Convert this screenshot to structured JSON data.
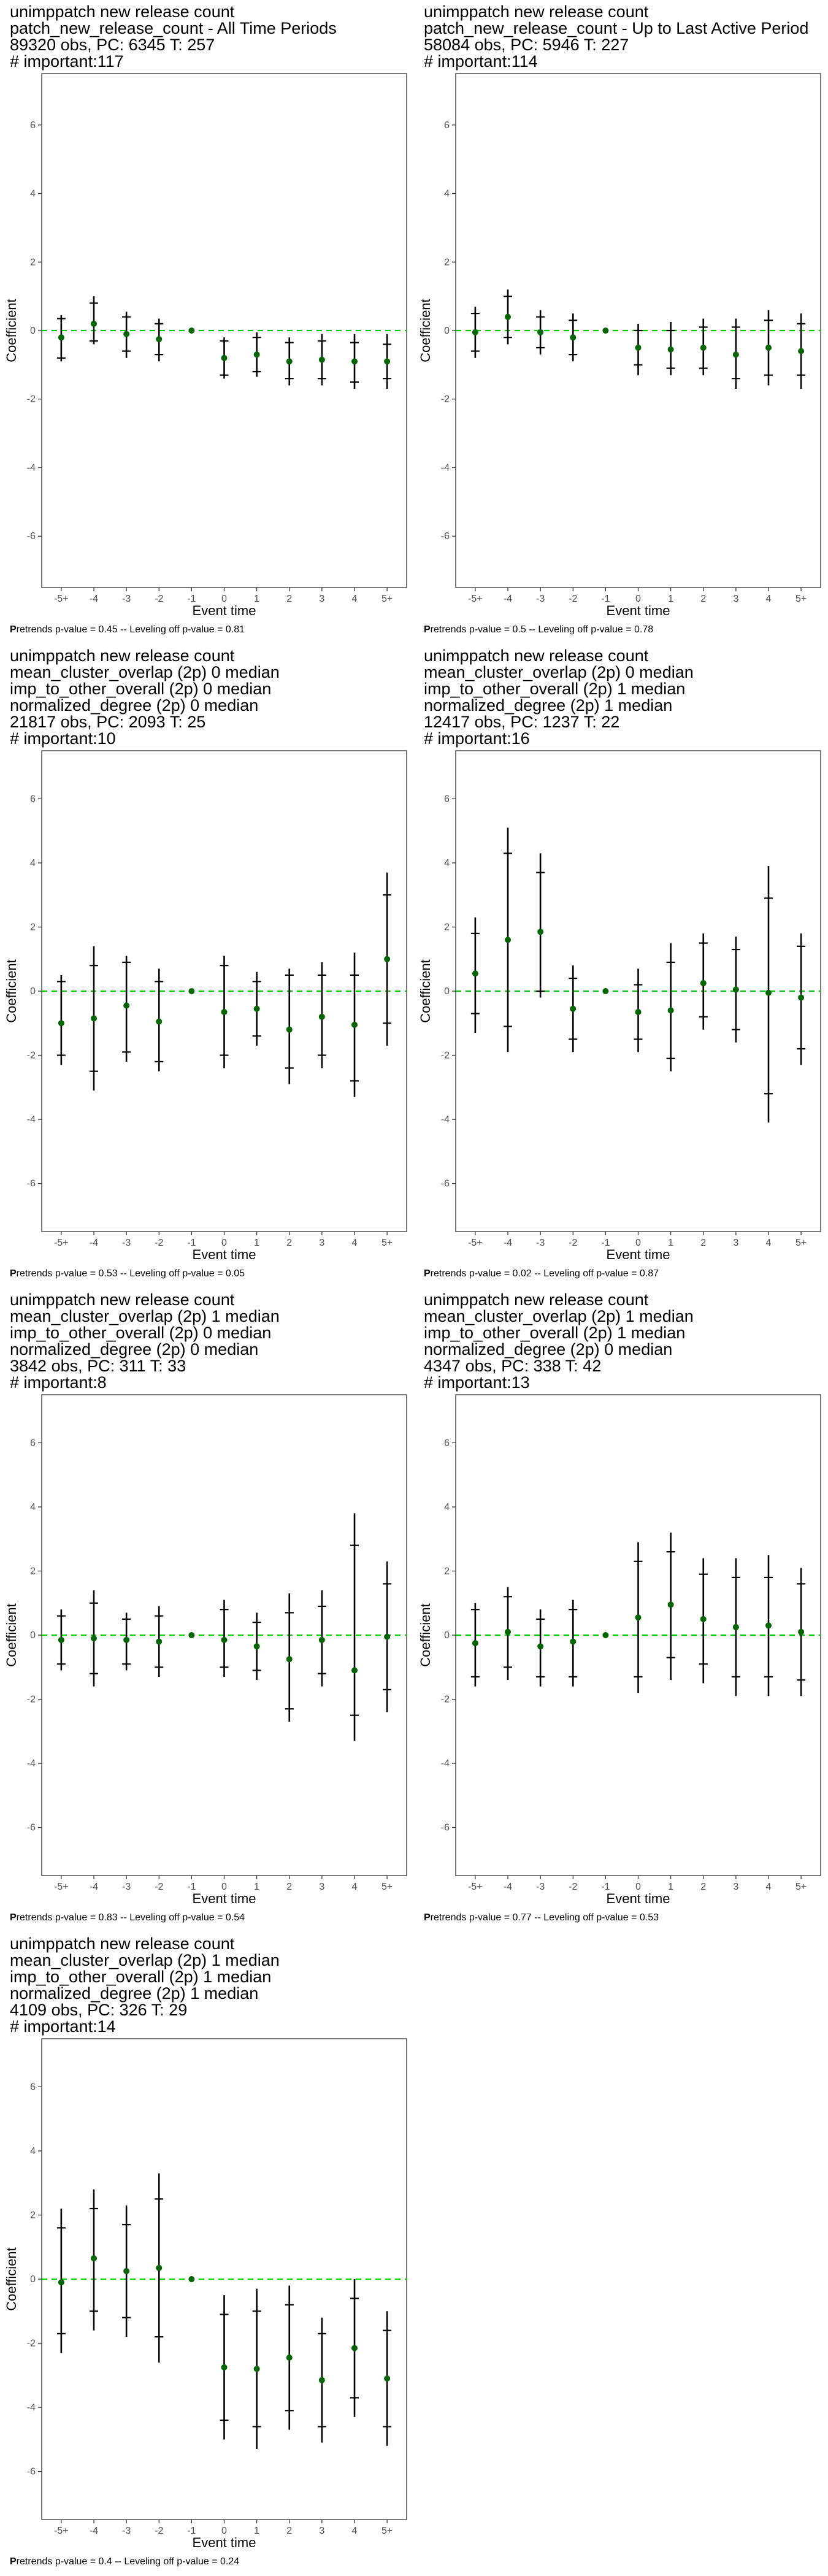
{
  "layout": {
    "columns": 2
  },
  "colors": {
    "zero_line": "#00cc00",
    "point": "#006400",
    "error_bar": "#000000",
    "frame": "#333333"
  },
  "chart_data": [
    {
      "type": "scatter",
      "title_lines": [
        "unimppatch new release count",
        "patch_new_release_count - All Time Periods",
        "89320 obs, PC: 6345 T: 257",
        "# important:117"
      ],
      "xlabel": "Event time",
      "ylabel": "Coefficient",
      "categories": [
        "-5+",
        "-4",
        "-3",
        "-2",
        "-1",
        "0",
        "1",
        "2",
        "3",
        "4",
        "5+"
      ],
      "ylim": [
        -7.5,
        7.5
      ],
      "yticks": [
        -6,
        -4,
        -2,
        0,
        2,
        4,
        6
      ],
      "series": [
        {
          "values": [
            -0.2,
            0.2,
            -0.1,
            -0.25,
            0.0,
            -0.8,
            -0.7,
            -0.9,
            -0.85,
            -0.9,
            -0.9
          ],
          "ci_inner": [
            [
              -0.8,
              0.35
            ],
            [
              -0.3,
              0.8
            ],
            [
              -0.6,
              0.4
            ],
            [
              -0.7,
              0.2
            ],
            [
              0,
              0
            ],
            [
              -1.3,
              -0.3
            ],
            [
              -1.2,
              -0.2
            ],
            [
              -1.4,
              -0.35
            ],
            [
              -1.4,
              -0.3
            ],
            [
              -1.5,
              -0.35
            ],
            [
              -1.4,
              -0.4
            ]
          ],
          "ci_outer": [
            [
              -0.9,
              0.45
            ],
            [
              -0.4,
              1.0
            ],
            [
              -0.8,
              0.55
            ],
            [
              -0.9,
              0.35
            ],
            [
              0,
              0
            ],
            [
              -1.4,
              -0.2
            ],
            [
              -1.35,
              -0.05
            ],
            [
              -1.6,
              -0.2
            ],
            [
              -1.6,
              -0.1
            ],
            [
              -1.7,
              -0.1
            ],
            [
              -1.7,
              -0.1
            ]
          ]
        }
      ],
      "caption_bold": "P",
      "caption": "retrends p-value = 0.45 -- Leveling off p-value = 0.81"
    },
    {
      "type": "scatter",
      "title_lines": [
        "unimppatch new release count",
        "patch_new_release_count - Up to Last Active Period",
        "58084 obs, PC: 5946 T: 227",
        "# important:114"
      ],
      "xlabel": "Event time",
      "ylabel": "Coefficient",
      "categories": [
        "-5+",
        "-4",
        "-3",
        "-2",
        "-1",
        "0",
        "1",
        "2",
        "3",
        "4",
        "5+"
      ],
      "ylim": [
        -7.5,
        7.5
      ],
      "yticks": [
        -6,
        -4,
        -2,
        0,
        2,
        4,
        6
      ],
      "series": [
        {
          "values": [
            -0.05,
            0.4,
            -0.05,
            -0.2,
            0.0,
            -0.5,
            -0.55,
            -0.5,
            -0.7,
            -0.5,
            -0.6
          ],
          "ci_inner": [
            [
              -0.6,
              0.5
            ],
            [
              -0.2,
              1.0
            ],
            [
              -0.5,
              0.4
            ],
            [
              -0.7,
              0.3
            ],
            [
              0,
              0
            ],
            [
              -1.0,
              0.0
            ],
            [
              -1.1,
              0.0
            ],
            [
              -1.1,
              0.1
            ],
            [
              -1.4,
              0.1
            ],
            [
              -1.3,
              0.3
            ],
            [
              -1.3,
              0.2
            ]
          ],
          "ci_outer": [
            [
              -0.8,
              0.7
            ],
            [
              -0.4,
              1.2
            ],
            [
              -0.7,
              0.6
            ],
            [
              -0.9,
              0.5
            ],
            [
              0,
              0
            ],
            [
              -1.3,
              0.2
            ],
            [
              -1.3,
              0.25
            ],
            [
              -1.3,
              0.35
            ],
            [
              -1.7,
              0.35
            ],
            [
              -1.6,
              0.6
            ],
            [
              -1.7,
              0.5
            ]
          ]
        }
      ],
      "caption_bold": "P",
      "caption": "retrends p-value = 0.5 -- Leveling off p-value = 0.78"
    },
    {
      "type": "scatter",
      "title_lines": [
        "unimppatch new release count",
        "mean_cluster_overlap (2p) 0 median",
        "imp_to_other_overall (2p) 0 median",
        "normalized_degree (2p) 0 median",
        "21817 obs, PC: 2093 T: 25",
        "# important:10"
      ],
      "xlabel": "Event time",
      "ylabel": "Coefficient",
      "categories": [
        "-5+",
        "-4",
        "-3",
        "-2",
        "-1",
        "0",
        "1",
        "2",
        "3",
        "4",
        "5+"
      ],
      "ylim": [
        -7.5,
        7.5
      ],
      "yticks": [
        -6,
        -4,
        -2,
        0,
        2,
        4,
        6
      ],
      "series": [
        {
          "values": [
            -1.0,
            -0.85,
            -0.45,
            -0.95,
            0.0,
            -0.65,
            -0.55,
            -1.2,
            -0.8,
            -1.05,
            1.0
          ],
          "ci_inner": [
            [
              -2.0,
              0.3
            ],
            [
              -2.5,
              0.8
            ],
            [
              -1.9,
              0.9
            ],
            [
              -2.2,
              0.3
            ],
            [
              0,
              0
            ],
            [
              -2.0,
              0.8
            ],
            [
              -1.4,
              0.3
            ],
            [
              -2.4,
              0.5
            ],
            [
              -2.0,
              0.5
            ],
            [
              -2.8,
              0.5
            ],
            [
              -1.0,
              3.0
            ]
          ],
          "ci_outer": [
            [
              -2.3,
              0.5
            ],
            [
              -3.1,
              1.4
            ],
            [
              -2.2,
              1.1
            ],
            [
              -2.5,
              0.7
            ],
            [
              0,
              0
            ],
            [
              -2.4,
              1.1
            ],
            [
              -1.7,
              0.6
            ],
            [
              -2.9,
              0.7
            ],
            [
              -2.4,
              0.9
            ],
            [
              -3.3,
              1.2
            ],
            [
              -1.7,
              3.7
            ]
          ]
        }
      ],
      "caption_bold": "P",
      "caption": "retrends p-value = 0.53 -- Leveling off p-value = 0.05"
    },
    {
      "type": "scatter",
      "title_lines": [
        "unimppatch new release count",
        "mean_cluster_overlap (2p) 0 median",
        "imp_to_other_overall (2p) 1 median",
        "normalized_degree (2p) 1 median",
        "12417 obs, PC: 1237 T: 22",
        "# important:16"
      ],
      "xlabel": "Event time",
      "ylabel": "Coefficient",
      "categories": [
        "-5+",
        "-4",
        "-3",
        "-2",
        "-1",
        "0",
        "1",
        "2",
        "3",
        "4",
        "5+"
      ],
      "ylim": [
        -7.5,
        7.5
      ],
      "yticks": [
        -6,
        -4,
        -2,
        0,
        2,
        4,
        6
      ],
      "series": [
        {
          "values": [
            0.55,
            1.6,
            1.85,
            -0.55,
            0.0,
            -0.65,
            -0.6,
            0.25,
            0.05,
            -0.05,
            -0.2
          ],
          "ci_inner": [
            [
              -0.7,
              1.8
            ],
            [
              -1.1,
              4.3
            ],
            [
              0.0,
              3.7
            ],
            [
              -1.5,
              0.4
            ],
            [
              0,
              0
            ],
            [
              -1.5,
              0.2
            ],
            [
              -2.1,
              0.9
            ],
            [
              -0.8,
              1.5
            ],
            [
              -1.2,
              1.3
            ],
            [
              -3.2,
              2.9
            ],
            [
              -1.8,
              1.4
            ]
          ],
          "ci_outer": [
            [
              -1.3,
              2.3
            ],
            [
              -1.9,
              5.1
            ],
            [
              -0.2,
              4.3
            ],
            [
              -1.9,
              0.8
            ],
            [
              0,
              0
            ],
            [
              -1.9,
              0.7
            ],
            [
              -2.5,
              1.5
            ],
            [
              -1.2,
              1.8
            ],
            [
              -1.6,
              1.7
            ],
            [
              -4.1,
              3.9
            ],
            [
              -2.3,
              1.8
            ]
          ]
        }
      ],
      "caption_bold": "P",
      "caption": "retrends p-value = 0.02 -- Leveling off p-value = 0.87"
    },
    {
      "type": "scatter",
      "title_lines": [
        "unimppatch new release count",
        "mean_cluster_overlap (2p) 1 median",
        "imp_to_other_overall (2p) 0 median",
        "normalized_degree (2p) 0 median",
        "3842 obs, PC: 311 T: 33",
        "# important:8"
      ],
      "xlabel": "Event time",
      "ylabel": "Coefficient",
      "categories": [
        "-5+",
        "-4",
        "-3",
        "-2",
        "-1",
        "0",
        "1",
        "2",
        "3",
        "4",
        "5+"
      ],
      "ylim": [
        -7.5,
        7.5
      ],
      "yticks": [
        -6,
        -4,
        -2,
        0,
        2,
        4,
        6
      ],
      "series": [
        {
          "values": [
            -0.15,
            -0.1,
            -0.15,
            -0.2,
            0.0,
            -0.15,
            -0.35,
            -0.75,
            -0.15,
            -1.1,
            -0.05
          ],
          "ci_inner": [
            [
              -0.9,
              0.6
            ],
            [
              -1.2,
              1.0
            ],
            [
              -0.9,
              0.5
            ],
            [
              -1.0,
              0.6
            ],
            [
              0,
              0
            ],
            [
              -1.0,
              0.8
            ],
            [
              -1.1,
              0.4
            ],
            [
              -2.3,
              0.7
            ],
            [
              -1.2,
              0.9
            ],
            [
              -2.5,
              2.8
            ],
            [
              -1.7,
              1.6
            ]
          ],
          "ci_outer": [
            [
              -1.1,
              0.8
            ],
            [
              -1.6,
              1.4
            ],
            [
              -1.1,
              0.7
            ],
            [
              -1.3,
              0.9
            ],
            [
              0,
              0
            ],
            [
              -1.3,
              1.1
            ],
            [
              -1.4,
              0.7
            ],
            [
              -2.7,
              1.3
            ],
            [
              -1.6,
              1.4
            ],
            [
              -3.3,
              3.8
            ],
            [
              -2.4,
              2.3
            ]
          ]
        }
      ],
      "caption_bold": "P",
      "caption": "retrends p-value = 0.83 -- Leveling off p-value = 0.54"
    },
    {
      "type": "scatter",
      "title_lines": [
        "unimppatch new release count",
        "mean_cluster_overlap (2p) 1 median",
        "imp_to_other_overall (2p) 1 median",
        "normalized_degree (2p) 0 median",
        "4347 obs, PC: 338 T: 42",
        "# important:13"
      ],
      "xlabel": "Event time",
      "ylabel": "Coefficient",
      "categories": [
        "-5+",
        "-4",
        "-3",
        "-2",
        "-1",
        "0",
        "1",
        "2",
        "3",
        "4",
        "5+"
      ],
      "ylim": [
        -7.5,
        7.5
      ],
      "yticks": [
        -6,
        -4,
        -2,
        0,
        2,
        4,
        6
      ],
      "series": [
        {
          "values": [
            -0.25,
            0.1,
            -0.35,
            -0.2,
            0.0,
            0.55,
            0.95,
            0.5,
            0.25,
            0.3,
            0.1
          ],
          "ci_inner": [
            [
              -1.3,
              0.8
            ],
            [
              -1.0,
              1.2
            ],
            [
              -1.3,
              0.5
            ],
            [
              -1.3,
              0.8
            ],
            [
              0,
              0
            ],
            [
              -1.3,
              2.3
            ],
            [
              -0.7,
              2.6
            ],
            [
              -0.9,
              1.9
            ],
            [
              -1.3,
              1.8
            ],
            [
              -1.3,
              1.8
            ],
            [
              -1.4,
              1.6
            ]
          ],
          "ci_outer": [
            [
              -1.6,
              1.0
            ],
            [
              -1.4,
              1.5
            ],
            [
              -1.6,
              0.8
            ],
            [
              -1.6,
              1.1
            ],
            [
              0,
              0
            ],
            [
              -1.8,
              2.9
            ],
            [
              -1.4,
              3.2
            ],
            [
              -1.5,
              2.4
            ],
            [
              -1.9,
              2.4
            ],
            [
              -1.9,
              2.5
            ],
            [
              -1.9,
              2.1
            ]
          ]
        }
      ],
      "caption_bold": "P",
      "caption": "retrends p-value = 0.77 -- Leveling off p-value = 0.53"
    },
    {
      "type": "scatter",
      "title_lines": [
        "unimppatch new release count",
        "mean_cluster_overlap (2p) 1 median",
        "imp_to_other_overall (2p) 1 median",
        "normalized_degree (2p) 1 median",
        "4109 obs, PC: 326 T: 29",
        "# important:14"
      ],
      "xlabel": "Event time",
      "ylabel": "Coefficient",
      "categories": [
        "-5+",
        "-4",
        "-3",
        "-2",
        "-1",
        "0",
        "1",
        "2",
        "3",
        "4",
        "5+"
      ],
      "ylim": [
        -7.5,
        7.5
      ],
      "yticks": [
        -6,
        -4,
        -2,
        0,
        2,
        4,
        6
      ],
      "series": [
        {
          "values": [
            -0.1,
            0.65,
            0.25,
            0.35,
            0.0,
            -2.75,
            -2.8,
            -2.45,
            -3.15,
            -2.15,
            -3.1
          ],
          "ci_inner": [
            [
              -1.7,
              1.6
            ],
            [
              -1.0,
              2.2
            ],
            [
              -1.2,
              1.7
            ],
            [
              -1.8,
              2.5
            ],
            [
              0,
              0
            ],
            [
              -4.4,
              -1.1
            ],
            [
              -4.6,
              -1.0
            ],
            [
              -4.1,
              -0.8
            ],
            [
              -4.6,
              -1.7
            ],
            [
              -3.7,
              -0.6
            ],
            [
              -4.6,
              -1.6
            ]
          ],
          "ci_outer": [
            [
              -2.3,
              2.2
            ],
            [
              -1.6,
              2.8
            ],
            [
              -1.8,
              2.3
            ],
            [
              -2.6,
              3.3
            ],
            [
              0,
              0
            ],
            [
              -5.0,
              -0.5
            ],
            [
              -5.3,
              -0.3
            ],
            [
              -4.7,
              -0.2
            ],
            [
              -5.1,
              -1.2
            ],
            [
              -4.3,
              0.0
            ],
            [
              -5.2,
              -1.0
            ]
          ]
        }
      ],
      "caption_bold": "P",
      "caption": "retrends p-value = 0.4 -- Leveling off p-value = 0.24"
    }
  ]
}
